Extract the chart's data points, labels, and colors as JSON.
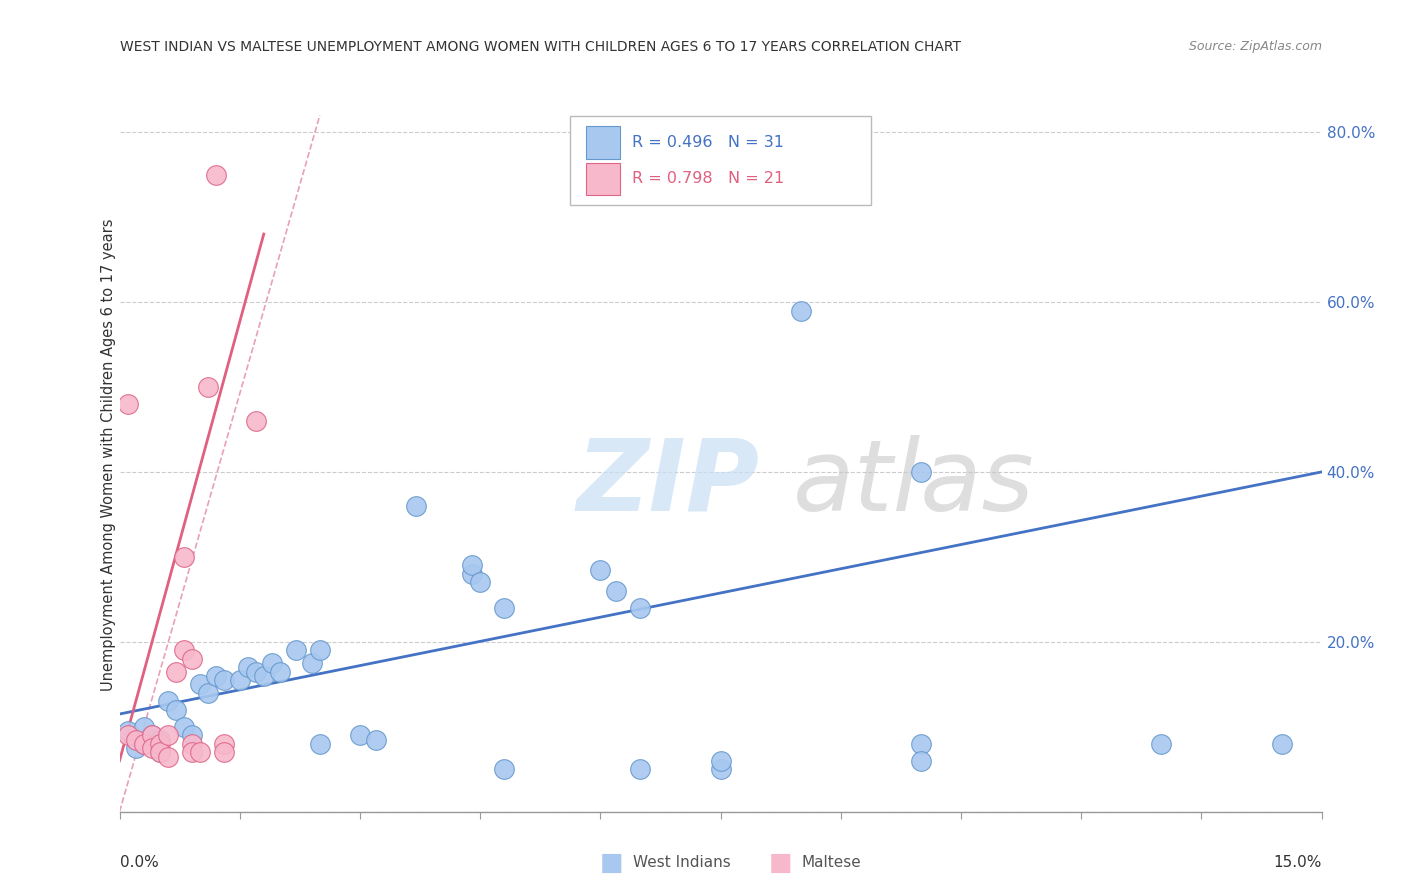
{
  "title": "WEST INDIAN VS MALTESE UNEMPLOYMENT AMONG WOMEN WITH CHILDREN AGES 6 TO 17 YEARS CORRELATION CHART",
  "source": "Source: ZipAtlas.com",
  "ylabel": "Unemployment Among Women with Children Ages 6 to 17 years",
  "x_range": [
    0.0,
    0.15
  ],
  "y_range": [
    0.0,
    0.84
  ],
  "y_ticks": [
    0.0,
    0.2,
    0.4,
    0.6,
    0.8
  ],
  "y_tick_labels": [
    "",
    "20.0%",
    "40.0%",
    "60.0%",
    "80.0%"
  ],
  "west_indian_scatter": [
    [
      0.001,
      0.095
    ],
    [
      0.002,
      0.085
    ],
    [
      0.002,
      0.075
    ],
    [
      0.003,
      0.08
    ],
    [
      0.003,
      0.1
    ],
    [
      0.004,
      0.09
    ],
    [
      0.005,
      0.085
    ],
    [
      0.005,
      0.07
    ],
    [
      0.006,
      0.13
    ],
    [
      0.007,
      0.12
    ],
    [
      0.008,
      0.1
    ],
    [
      0.009,
      0.09
    ],
    [
      0.01,
      0.15
    ],
    [
      0.011,
      0.14
    ],
    [
      0.012,
      0.16
    ],
    [
      0.013,
      0.155
    ],
    [
      0.015,
      0.155
    ],
    [
      0.016,
      0.17
    ],
    [
      0.017,
      0.165
    ],
    [
      0.018,
      0.16
    ],
    [
      0.019,
      0.175
    ],
    [
      0.02,
      0.165
    ],
    [
      0.022,
      0.19
    ],
    [
      0.024,
      0.175
    ],
    [
      0.025,
      0.19
    ],
    [
      0.025,
      0.08
    ],
    [
      0.03,
      0.09
    ],
    [
      0.032,
      0.085
    ],
    [
      0.037,
      0.36
    ],
    [
      0.044,
      0.28
    ],
    [
      0.044,
      0.29
    ],
    [
      0.045,
      0.27
    ],
    [
      0.048,
      0.24
    ],
    [
      0.048,
      0.05
    ],
    [
      0.06,
      0.285
    ],
    [
      0.062,
      0.26
    ],
    [
      0.065,
      0.24
    ],
    [
      0.065,
      0.05
    ],
    [
      0.075,
      0.05
    ],
    [
      0.075,
      0.06
    ],
    [
      0.085,
      0.59
    ],
    [
      0.1,
      0.08
    ],
    [
      0.1,
      0.06
    ],
    [
      0.1,
      0.4
    ],
    [
      0.13,
      0.08
    ],
    [
      0.145,
      0.08
    ]
  ],
  "maltese_scatter": [
    [
      0.001,
      0.09
    ],
    [
      0.002,
      0.085
    ],
    [
      0.003,
      0.08
    ],
    [
      0.004,
      0.09
    ],
    [
      0.004,
      0.075
    ],
    [
      0.005,
      0.08
    ],
    [
      0.005,
      0.07
    ],
    [
      0.006,
      0.065
    ],
    [
      0.006,
      0.09
    ],
    [
      0.007,
      0.165
    ],
    [
      0.008,
      0.3
    ],
    [
      0.008,
      0.19
    ],
    [
      0.009,
      0.18
    ],
    [
      0.009,
      0.08
    ],
    [
      0.009,
      0.07
    ],
    [
      0.01,
      0.07
    ],
    [
      0.011,
      0.5
    ],
    [
      0.012,
      0.75
    ],
    [
      0.013,
      0.08
    ],
    [
      0.013,
      0.07
    ],
    [
      0.017,
      0.46
    ],
    [
      0.001,
      0.48
    ]
  ],
  "west_indian_line": {
    "x": [
      0.0,
      0.15
    ],
    "y": [
      0.115,
      0.4
    ]
  },
  "maltese_line": {
    "x": [
      0.0,
      0.018
    ],
    "y": [
      0.06,
      0.68
    ]
  },
  "diagonal_line": {
    "x": [
      0.0,
      0.025
    ],
    "y": [
      0.0,
      0.82
    ]
  },
  "west_indian_color": "#a8c8f0",
  "west_indian_edge": "#6699cc",
  "maltese_color": "#f8b8cc",
  "maltese_edge": "#dd6688",
  "west_indian_line_color": "#4472c4",
  "maltese_line_color": "#e06080",
  "diagonal_color": "#e8a0b8",
  "watermark_zip_color": "#c8dff5",
  "watermark_atlas_color": "#c8c8c8",
  "background_color": "#ffffff",
  "grid_color": "#cccccc",
  "title_color": "#333333",
  "source_color": "#888888",
  "axis_label_color": "#333333",
  "tick_color": "#4472c4"
}
